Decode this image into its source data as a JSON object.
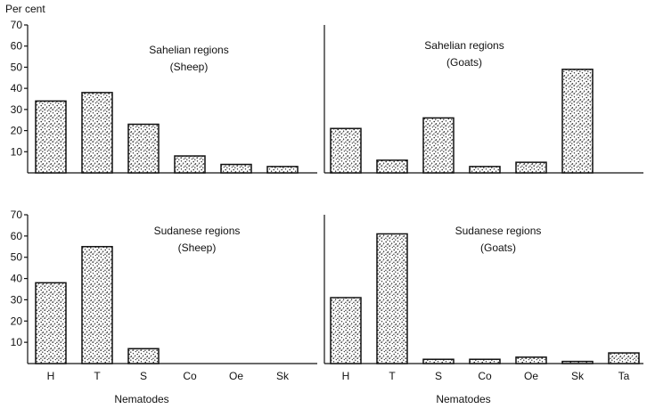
{
  "figure": {
    "ylabel_top": "Per cent",
    "xlabel": "Nematodes"
  },
  "chart_data": [
    {
      "type": "bar",
      "title": "Sahelian regions",
      "subtitle": "(Sheep)",
      "categories": [
        "H",
        "T",
        "S",
        "Co",
        "Oe",
        "Sk"
      ],
      "values": [
        34,
        38,
        23,
        8,
        4,
        3
      ],
      "ylim": [
        0,
        70
      ],
      "yticks": [
        10,
        20,
        30,
        40,
        50,
        60,
        70
      ],
      "show_xticklabels": false,
      "ylabel": "Per cent",
      "xlabel": ""
    },
    {
      "type": "bar",
      "title": "Sahelian regions",
      "subtitle": "(Goats)",
      "categories": [
        "H",
        "T",
        "S",
        "Co",
        "Oe",
        "Sk"
      ],
      "values": [
        21,
        6,
        26,
        3,
        5,
        49
      ],
      "ylim": [
        0,
        70
      ],
      "yticks": [],
      "show_xticklabels": false,
      "ylabel": "",
      "xlabel": ""
    },
    {
      "type": "bar",
      "title": "Sudanese regions",
      "subtitle": "(Sheep)",
      "categories": [
        "H",
        "T",
        "S",
        "Co",
        "Oe",
        "Sk"
      ],
      "values": [
        38,
        55,
        7,
        0,
        0,
        0
      ],
      "ylim": [
        0,
        70
      ],
      "yticks": [
        10,
        20,
        30,
        40,
        50,
        60,
        70
      ],
      "show_xticklabels": true,
      "ylabel": "",
      "xlabel": "Nematodes"
    },
    {
      "type": "bar",
      "title": "Sudanese regions",
      "subtitle": "(Goats)",
      "categories": [
        "H",
        "T",
        "S",
        "Co",
        "Oe",
        "Sk",
        "Ta"
      ],
      "values": [
        31,
        61,
        2,
        2,
        3,
        1,
        5
      ],
      "ylim": [
        0,
        70
      ],
      "yticks": [],
      "show_xticklabels": true,
      "ylabel": "",
      "xlabel": "Nematodes"
    }
  ]
}
